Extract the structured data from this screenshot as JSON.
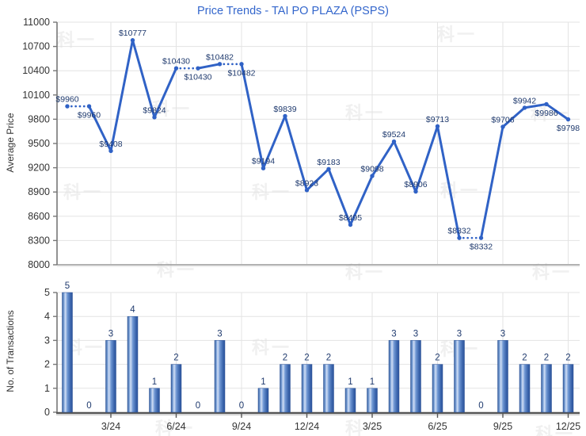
{
  "title": "Price Trends - TAI PO PLAZA (PSPS)",
  "watermark": {
    "text": "科一"
  },
  "colors": {
    "title": "#3366cc",
    "line": "#3062c6",
    "point_label": "#1f3a6e",
    "bar_label": "#1f3a6e",
    "axis_text": "#333333",
    "gridline": "#e3e3e3",
    "axis_line": "#777777",
    "bottom_axis": "#555555",
    "bar_border": "#2b5196"
  },
  "chart_data": [
    {
      "type": "line",
      "title": "Price Trends - TAI PO PLAZA (PSPS)",
      "ylabel": "Average Price",
      "ylim": [
        8000,
        11000
      ],
      "yticks": [
        8000,
        8300,
        8600,
        8900,
        9200,
        9500,
        9800,
        10100,
        10400,
        10700,
        11000
      ],
      "categories": [
        "1/24",
        "2/24",
        "3/24",
        "4/24",
        "5/24",
        "6/24",
        "7/24",
        "8/24",
        "9/24",
        "10/24",
        "11/24",
        "12/24",
        "1/25",
        "2/25",
        "3/25",
        "4/25",
        "5/25",
        "6/25",
        "7/25",
        "8/25",
        "9/25",
        "10/25",
        "11/25",
        "12/25"
      ],
      "xticks": [
        {
          "index": 2,
          "label": "3/24"
        },
        {
          "index": 5,
          "label": "6/24"
        },
        {
          "index": 8,
          "label": "9/24"
        },
        {
          "index": 11,
          "label": "12/24"
        },
        {
          "index": 14,
          "label": "3/25"
        },
        {
          "index": 17,
          "label": "6/25"
        },
        {
          "index": 20,
          "label": "9/25"
        },
        {
          "index": 23,
          "label": "12/25"
        }
      ],
      "values": [
        9960,
        9960,
        9408,
        10777,
        9824,
        10430,
        10430,
        10482,
        10482,
        9194,
        9839,
        8923,
        9183,
        8495,
        9098,
        9524,
        8906,
        9713,
        8332,
        8332,
        9706,
        9942,
        9986,
        9798
      ],
      "point_labels": [
        "$9960",
        "$9960",
        "$9408",
        "$10777",
        "$9824",
        "$10430",
        "$10430",
        "$10482",
        "$10482",
        "$9194",
        "$9839",
        "$8923",
        "$9183",
        "$8495",
        "$9098",
        "$9524",
        "$8906",
        "$9713",
        "$8332",
        "$8332",
        "$9706",
        "$9942",
        "$9986",
        "$9798"
      ],
      "label_side": [
        "above",
        "below",
        "above",
        "above",
        "above",
        "above",
        "below",
        "above",
        "below",
        "above",
        "above",
        "above",
        "above",
        "above",
        "above",
        "above",
        "above",
        "above",
        "above",
        "below",
        "above",
        "above",
        "below",
        "below"
      ],
      "dotted_segment_end_indices": [
        1,
        6,
        8,
        19
      ],
      "grid": true,
      "legend": "none"
    },
    {
      "type": "bar",
      "ylabel": "No. of Transactions",
      "ylim": [
        0,
        5
      ],
      "yticks": [
        0,
        1,
        2,
        3,
        4,
        5
      ],
      "categories": [
        "1/24",
        "2/24",
        "3/24",
        "4/24",
        "5/24",
        "6/24",
        "7/24",
        "8/24",
        "9/24",
        "10/24",
        "11/24",
        "12/24",
        "1/25",
        "2/25",
        "3/25",
        "4/25",
        "5/25",
        "6/25",
        "7/25",
        "8/25",
        "9/25",
        "10/25",
        "11/25",
        "12/25"
      ],
      "xticks": [
        {
          "index": 2,
          "label": "3/24"
        },
        {
          "index": 5,
          "label": "6/24"
        },
        {
          "index": 8,
          "label": "9/24"
        },
        {
          "index": 11,
          "label": "12/24"
        },
        {
          "index": 14,
          "label": "3/25"
        },
        {
          "index": 17,
          "label": "6/25"
        },
        {
          "index": 20,
          "label": "9/25"
        },
        {
          "index": 23,
          "label": "12/25"
        }
      ],
      "values": [
        5,
        0,
        3,
        4,
        1,
        2,
        0,
        3,
        0,
        1,
        2,
        2,
        2,
        1,
        1,
        3,
        3,
        2,
        3,
        0,
        3,
        2,
        2,
        2
      ],
      "grid": true,
      "legend": "none"
    }
  ]
}
